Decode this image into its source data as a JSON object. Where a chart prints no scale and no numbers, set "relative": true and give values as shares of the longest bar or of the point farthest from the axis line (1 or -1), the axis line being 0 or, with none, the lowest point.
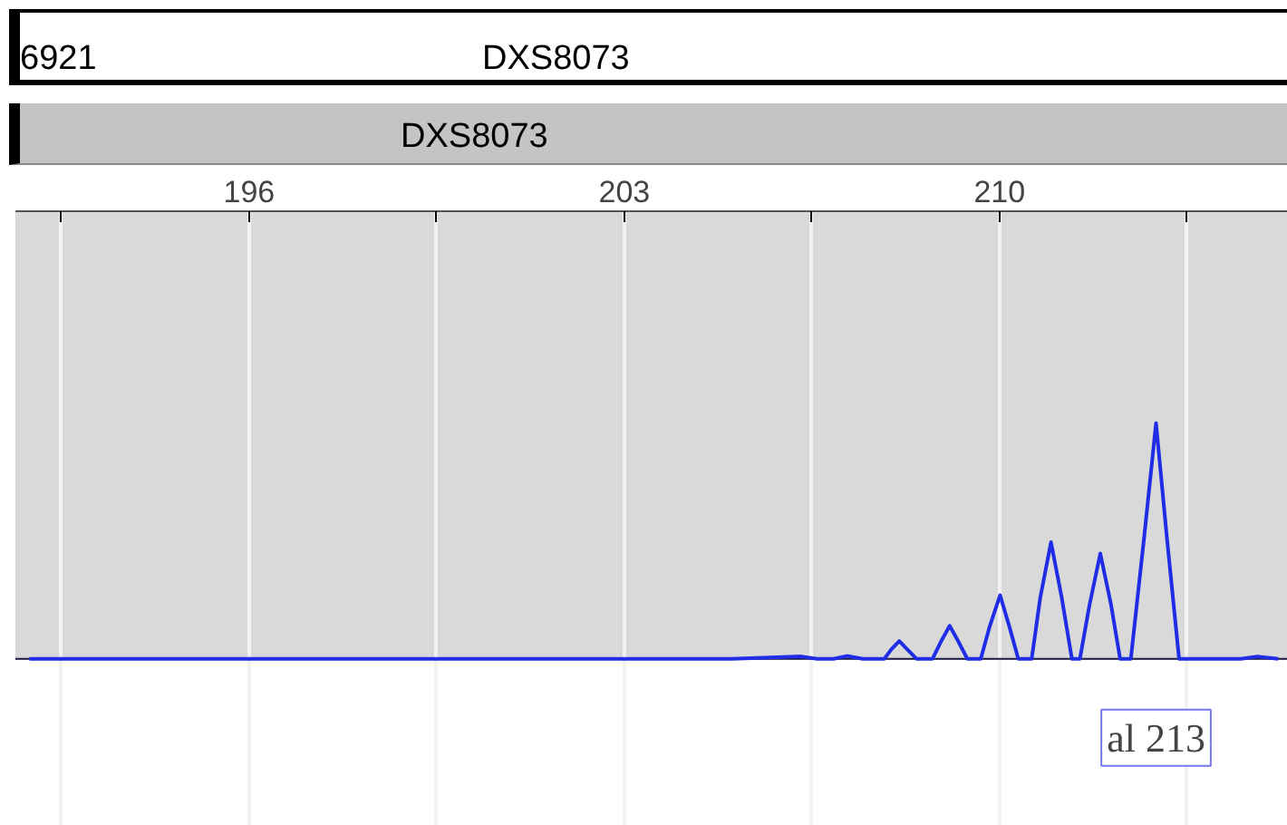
{
  "chart_data": {
    "type": "line",
    "relative": true,
    "title": "DXS8073",
    "annotations": [
      "6921",
      "DXS8073",
      "al 213"
    ],
    "xlim": [
      191.64,
      215.38
    ],
    "xticks": [
      {
        "value": 192.5,
        "label": null
      },
      196,
      {
        "value": 199.5,
        "label": null
      },
      203,
      {
        "value": 206.5,
        "label": null
      },
      210,
      {
        "value": 213.5,
        "label": null
      }
    ],
    "grid": "x",
    "marker": "none",
    "line_style": "solid",
    "series": [
      {
        "color": "#1f2ee6",
        "x": [
          191.9,
          205.0,
          206.3,
          206.6,
          206.9,
          207.15,
          207.45,
          207.85,
          207.98,
          208.13,
          208.28,
          208.45,
          208.75,
          208.9,
          209.07,
          209.24,
          209.4,
          209.65,
          209.82,
          210.01,
          210.18,
          210.35,
          210.6,
          210.76,
          210.96,
          211.16,
          211.35,
          211.5,
          211.68,
          211.88,
          212.08,
          212.25,
          212.45,
          212.7,
          212.92,
          213.12,
          213.35,
          214.5,
          214.81,
          215.2
        ],
        "values": [
          0,
          0,
          0.01,
          0,
          0,
          0.012,
          0,
          0,
          0.04,
          0.075,
          0.04,
          0,
          0,
          0.07,
          0.14,
          0.07,
          0,
          0,
          0.14,
          0.27,
          0.14,
          0,
          0,
          0.26,
          0.495,
          0.26,
          0,
          0,
          0.23,
          0.447,
          0.23,
          0,
          0,
          0.52,
          1,
          0.52,
          0,
          0,
          0.01,
          0
        ]
      }
    ]
  }
}
